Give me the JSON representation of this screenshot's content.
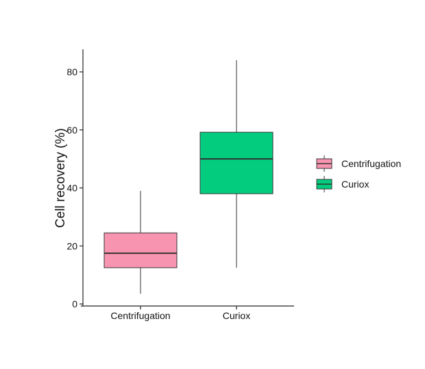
{
  "chart_data": {
    "type": "box",
    "title": "",
    "xlabel": "",
    "ylabel": "Cell recovery (%)",
    "ylim": [
      0,
      88
    ],
    "yticks": [
      0,
      20,
      40,
      60,
      80
    ],
    "categories": [
      "Centrifugation",
      "Curiox"
    ],
    "boxes": [
      {
        "category": "Centrifugation",
        "whisker_low": 3.5,
        "q1": 12.5,
        "median": 17.5,
        "q3": 24.5,
        "whisker_high": 39,
        "color": "#F795B0"
      },
      {
        "category": "Curiox",
        "whisker_low": 12.5,
        "q1": 38,
        "median": 50,
        "q3": 59.2,
        "whisker_high": 84,
        "color": "#03CC7F"
      }
    ],
    "legend": {
      "position": "right",
      "entries": [
        {
          "label": "Centrifugation",
          "color": "#F795B0"
        },
        {
          "label": "Curiox",
          "color": "#03CC7F"
        }
      ]
    },
    "grid": false
  }
}
